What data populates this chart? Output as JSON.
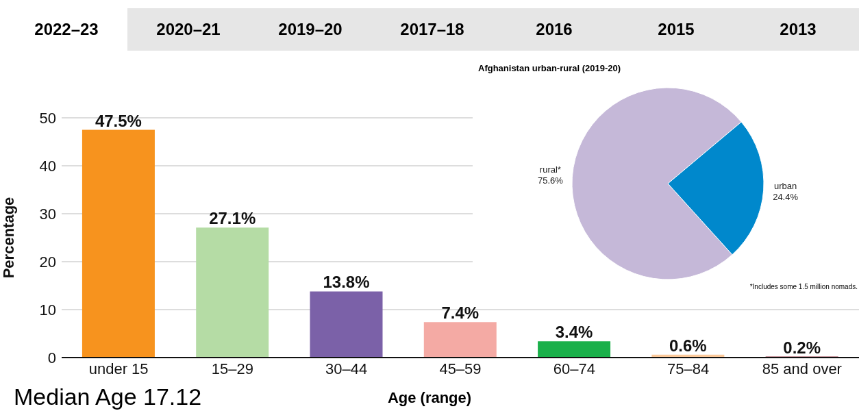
{
  "chart_data": [
    {
      "type": "bar",
      "xlabel": "Age (range)",
      "ylabel": "Percentage",
      "categories": [
        "under 15",
        "15–29",
        "30–44",
        "45–59",
        "60–74",
        "75–84",
        "85 and over"
      ],
      "values": [
        47.5,
        27.1,
        13.8,
        7.4,
        3.4,
        0.6,
        0.2
      ],
      "colors": [
        "#f7931e",
        "#b5dca5",
        "#7b61a8",
        "#f4aaa4",
        "#1ab04a",
        "#fbc99a",
        "#8b2b3a"
      ],
      "value_labels": [
        "47.5%",
        "27.1%",
        "13.8%",
        "7.4%",
        "3.4%",
        "0.6%",
        "0.2%"
      ],
      "ylim": [
        0,
        50
      ],
      "yticks": [
        0,
        10,
        20,
        30,
        40,
        50
      ],
      "grid": "y",
      "annotations": [
        "2022–23",
        "2020–21",
        "2019–20",
        "2017–18",
        "2016",
        "2015",
        "2013",
        "Median Age 17.12"
      ]
    },
    {
      "type": "pie",
      "title": "Afghanistan urban-rural (2019-20)",
      "categories": [
        "rural*",
        "urban"
      ],
      "values": [
        75.6,
        24.4
      ],
      "colors": [
        "#c5b8d8",
        "#0088cc"
      ],
      "value_labels": [
        "75.6%",
        "24.4%"
      ],
      "annotations": [
        "*Includes some 1.5 million nomads."
      ]
    }
  ]
}
